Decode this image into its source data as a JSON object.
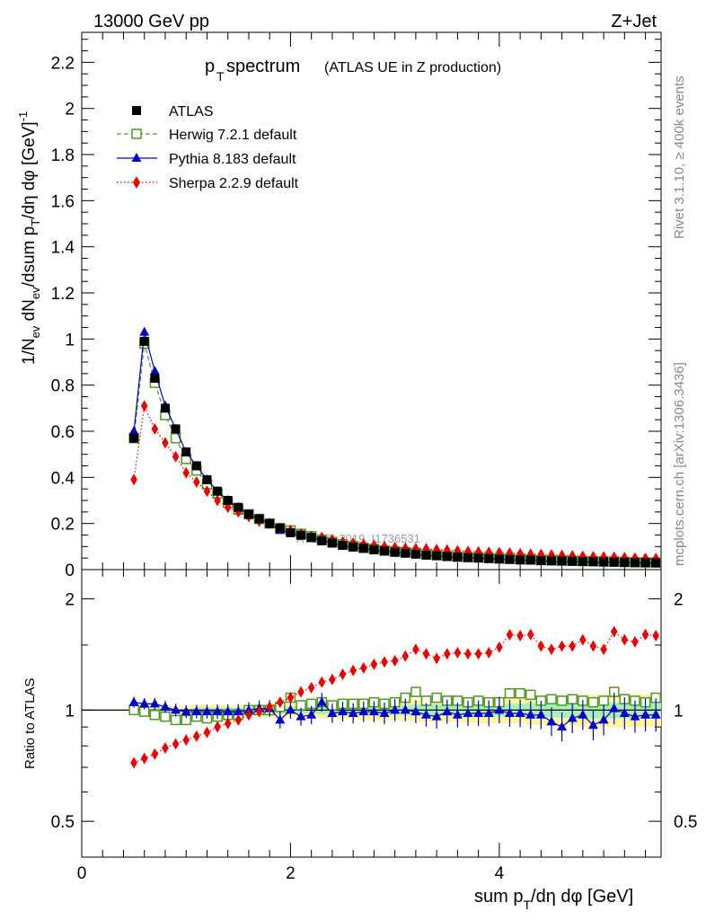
{
  "header": {
    "energy": "13000 GeV pp",
    "process": "Z+Jet",
    "title_main": "p",
    "title_sub": "T",
    "title_rest": " spectrum",
    "title_paren": "(ATLAS UE in Z production)"
  },
  "side_labels": {
    "rivet": "Rivet 3.1.10, ≥ 400k events",
    "mcplots": "mcplots.cern.ch [arXiv:1306.3436]"
  },
  "watermark": "ATLAS_2019_I1736531",
  "axes": {
    "main_ylabel": "1/N_ev dN_ev/dsum p_T/dη dφ [GeV]^-1",
    "main_ylabel_parts": {
      "a": "1/N",
      "a_sub": "ev",
      "b": " dN",
      "b_sub": "ev",
      "c": "/dsum p",
      "c_sub": "T",
      "d": "/dη dφ  [GeV]",
      "d_sup": "-1"
    },
    "ratio_ylabel": "Ratio to ATLAS",
    "xlabel_parts": {
      "a": "sum p",
      "a_sub": "T",
      "b": "/dη dφ [GeV]"
    }
  },
  "legend": [
    {
      "label": "ATLAS",
      "color": "#000000",
      "marker": "square-filled",
      "line": "none"
    },
    {
      "label": "Herwig 7.2.1 default",
      "color": "#4d9a21",
      "marker": "square-open",
      "line": "dashed"
    },
    {
      "label": "Pythia 8.183 default",
      "color": "#0000cc",
      "marker": "triangle",
      "line": "solid"
    },
    {
      "label": "Sherpa 2.2.9 default",
      "color": "#ee0000",
      "marker": "diamond",
      "line": "dotted"
    }
  ],
  "chart_data": [
    {
      "type": "scatter",
      "panel": "main",
      "title": "pT spectrum (ATLAS UE in Z production)",
      "xlabel": "sum pT/dη dφ [GeV]",
      "ylabel": "1/Nev dNev/dsum pT/dη dφ [GeV]^-1",
      "xlim": [
        0,
        5.55
      ],
      "ylim": [
        0,
        2.33
      ],
      "y_ticks": [
        0,
        0.2,
        0.4,
        0.6,
        0.8,
        1,
        1.2,
        1.4,
        1.6,
        1.8,
        2,
        2.2
      ],
      "y_tick_labels": [
        "0",
        "0.2",
        "0.4",
        "0.6",
        "0.8",
        "1",
        "1.2",
        "1.4",
        "1.6",
        "1.8",
        "2",
        "2.2"
      ],
      "x": [
        0.5,
        0.6,
        0.7,
        0.8,
        0.9,
        1.0,
        1.1,
        1.2,
        1.3,
        1.4,
        1.5,
        1.6,
        1.7,
        1.8,
        1.9,
        2.0,
        2.1,
        2.2,
        2.3,
        2.4,
        2.5,
        2.6,
        2.7,
        2.8,
        2.9,
        3.0,
        3.1,
        3.2,
        3.3,
        3.4,
        3.5,
        3.6,
        3.7,
        3.8,
        3.9,
        4.0,
        4.1,
        4.2,
        4.3,
        4.4,
        4.5,
        4.6,
        4.7,
        4.8,
        4.9,
        5.0,
        5.1,
        5.2,
        5.3,
        5.4,
        5.5
      ],
      "series": [
        {
          "name": "ATLAS",
          "values": [
            0.57,
            0.99,
            0.83,
            0.7,
            0.61,
            0.51,
            0.45,
            0.39,
            0.34,
            0.3,
            0.27,
            0.24,
            0.22,
            0.2,
            0.18,
            0.16,
            0.15,
            0.14,
            0.125,
            0.115,
            0.105,
            0.098,
            0.092,
            0.086,
            0.08,
            0.075,
            0.071,
            0.067,
            0.063,
            0.06,
            0.057,
            0.054,
            0.052,
            0.05,
            0.048,
            0.046,
            0.044,
            0.042,
            0.041,
            0.039,
            0.038,
            0.037,
            0.036,
            0.035,
            0.034,
            0.033,
            0.032,
            0.031,
            0.03,
            0.03,
            0.029
          ]
        },
        {
          "name": "Herwig 7.2.1 default",
          "values": [
            0.57,
            0.98,
            0.81,
            0.67,
            0.57,
            0.48,
            0.43,
            0.37,
            0.33,
            0.29,
            0.26,
            0.24,
            0.22,
            0.2,
            0.18,
            0.17,
            0.155,
            0.145,
            0.13,
            0.12,
            0.11,
            0.102,
            0.095,
            0.09,
            0.083,
            0.079,
            0.076,
            0.072,
            0.066,
            0.063,
            0.059,
            0.056,
            0.054,
            0.053,
            0.05,
            0.048,
            0.047,
            0.045,
            0.044,
            0.041,
            0.04,
            0.039,
            0.038,
            0.037,
            0.036,
            0.035,
            0.035,
            0.033,
            0.032,
            0.031,
            0.031
          ]
        },
        {
          "name": "Pythia 8.183 default",
          "values": [
            0.6,
            1.03,
            0.86,
            0.71,
            0.61,
            0.51,
            0.45,
            0.39,
            0.34,
            0.3,
            0.27,
            0.24,
            0.22,
            0.2,
            0.17,
            0.16,
            0.145,
            0.135,
            0.13,
            0.113,
            0.104,
            0.096,
            0.091,
            0.085,
            0.078,
            0.075,
            0.071,
            0.066,
            0.061,
            0.058,
            0.056,
            0.053,
            0.051,
            0.049,
            0.047,
            0.046,
            0.043,
            0.041,
            0.04,
            0.038,
            0.035,
            0.033,
            0.034,
            0.034,
            0.031,
            0.031,
            0.032,
            0.03,
            0.029,
            0.029,
            0.028
          ]
        },
        {
          "name": "Sherpa 2.2.9 default",
          "values": [
            0.39,
            0.71,
            0.61,
            0.55,
            0.49,
            0.42,
            0.38,
            0.34,
            0.3,
            0.27,
            0.25,
            0.23,
            0.21,
            0.2,
            0.18,
            0.17,
            0.155,
            0.145,
            0.14,
            0.13,
            0.12,
            0.115,
            0.11,
            0.105,
            0.1,
            0.096,
            0.093,
            0.091,
            0.09,
            0.087,
            0.085,
            0.082,
            0.079,
            0.077,
            0.075,
            0.074,
            0.072,
            0.069,
            0.067,
            0.066,
            0.064,
            0.062,
            0.06,
            0.058,
            0.056,
            0.055,
            0.054,
            0.052,
            0.05,
            0.049,
            0.048
          ]
        }
      ]
    },
    {
      "type": "scatter",
      "panel": "ratio",
      "xlabel": "sum pT/dη dφ [GeV]",
      "ylabel": "Ratio to ATLAS",
      "y_scale": "log",
      "xlim": [
        0,
        5.55
      ],
      "ylim": [
        0.4,
        2.4
      ],
      "x_ticks": [
        0,
        2,
        4
      ],
      "x_tick_labels": [
        "0",
        "2",
        "4"
      ],
      "y_ticks": [
        0.5,
        1,
        2
      ],
      "y_tick_labels": [
        "0.5",
        "1",
        "2"
      ],
      "x": [
        0.5,
        0.6,
        0.7,
        0.8,
        0.9,
        1.0,
        1.1,
        1.2,
        1.3,
        1.4,
        1.5,
        1.6,
        1.7,
        1.8,
        1.9,
        2.0,
        2.1,
        2.2,
        2.3,
        2.4,
        2.5,
        2.6,
        2.7,
        2.8,
        2.9,
        3.0,
        3.1,
        3.2,
        3.3,
        3.4,
        3.5,
        3.6,
        3.7,
        3.8,
        3.9,
        4.0,
        4.1,
        4.2,
        4.3,
        4.4,
        4.5,
        4.6,
        4.7,
        4.8,
        4.9,
        5.0,
        5.1,
        5.2,
        5.3,
        5.4,
        5.5
      ],
      "band_halfwidth": [
        0.01,
        0.01,
        0.01,
        0.01,
        0.01,
        0.01,
        0.015,
        0.015,
        0.015,
        0.015,
        0.015,
        0.015,
        0.02,
        0.02,
        0.02,
        0.02,
        0.02,
        0.02,
        0.025,
        0.025,
        0.025,
        0.025,
        0.03,
        0.03,
        0.03,
        0.03,
        0.03,
        0.035,
        0.035,
        0.035,
        0.035,
        0.035,
        0.04,
        0.04,
        0.04,
        0.04,
        0.04,
        0.04,
        0.045,
        0.045,
        0.045,
        0.045,
        0.045,
        0.05,
        0.05,
        0.05,
        0.05,
        0.05,
        0.05,
        0.05,
        0.05
      ],
      "series": [
        {
          "name": "Herwig 7.2.1 default",
          "values": [
            1.0,
            0.99,
            0.97,
            0.96,
            0.94,
            0.94,
            0.96,
            0.95,
            0.96,
            0.97,
            0.97,
            1.0,
            1.0,
            1.0,
            1.02,
            1.08,
            1.03,
            1.04,
            1.05,
            1.03,
            1.04,
            1.04,
            1.04,
            1.05,
            1.04,
            1.05,
            1.08,
            1.12,
            1.06,
            1.08,
            1.06,
            1.06,
            1.05,
            1.06,
            1.05,
            1.05,
            1.11,
            1.11,
            1.1,
            1.06,
            1.07,
            1.06,
            1.07,
            1.06,
            1.05,
            1.06,
            1.12,
            1.07,
            1.06,
            1.05,
            1.08
          ]
        },
        {
          "name": "Pythia 8.183 default",
          "values": [
            1.05,
            1.04,
            1.04,
            1.02,
            1.0,
            0.99,
            0.99,
            0.99,
            0.99,
            0.99,
            0.99,
            1.0,
            1.01,
            1.01,
            0.94,
            1.0,
            0.96,
            0.97,
            1.05,
            0.98,
            0.99,
            0.98,
            0.99,
            0.99,
            0.98,
            1.0,
            1.0,
            0.99,
            0.97,
            0.96,
            0.99,
            0.97,
            0.98,
            0.98,
            0.98,
            1.0,
            0.98,
            0.98,
            0.97,
            0.97,
            0.93,
            0.9,
            0.95,
            0.97,
            0.91,
            0.94,
            1.01,
            0.98,
            0.96,
            0.97,
            0.97
          ]
        },
        {
          "name": "Sherpa 2.2.9 default",
          "values": [
            0.72,
            0.74,
            0.76,
            0.79,
            0.81,
            0.83,
            0.85,
            0.87,
            0.9,
            0.92,
            0.94,
            0.97,
            0.99,
            1.02,
            1.05,
            1.08,
            1.12,
            1.15,
            1.19,
            1.21,
            1.25,
            1.28,
            1.3,
            1.33,
            1.35,
            1.36,
            1.4,
            1.46,
            1.42,
            1.38,
            1.42,
            1.43,
            1.42,
            1.42,
            1.43,
            1.48,
            1.6,
            1.59,
            1.6,
            1.49,
            1.46,
            1.49,
            1.49,
            1.55,
            1.49,
            1.46,
            1.63,
            1.55,
            1.53,
            1.6,
            1.59
          ]
        }
      ]
    }
  ]
}
